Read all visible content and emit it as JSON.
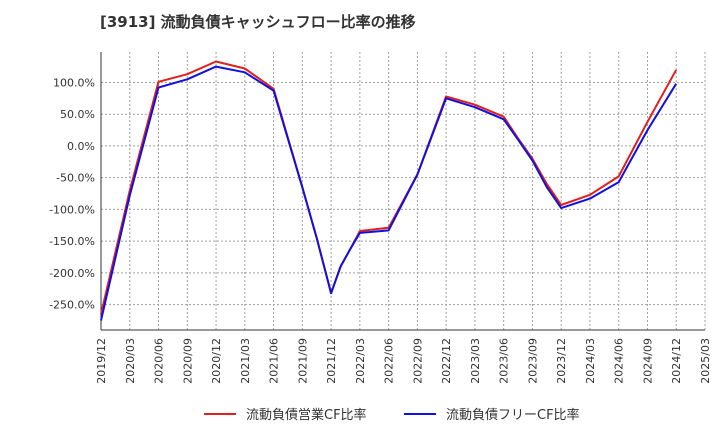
{
  "chart_data": {
    "type": "line",
    "title": "[3913]  流動負債キャッシュフロー比率の推移",
    "xlabel": "",
    "ylabel": "",
    "ylim": [
      -290,
      148
    ],
    "yticks": [
      100,
      50,
      0,
      -50,
      -100,
      -150,
      -200,
      -250
    ],
    "ytick_labels": [
      "100.0%",
      "50.0%",
      "0.0%",
      "-50.0%",
      "-100.0%",
      "-150.0%",
      "-200.0%",
      "-250.0%"
    ],
    "x_tick_labels": [
      "2019/12",
      "2020/03",
      "2020/06",
      "2020/09",
      "2020/12",
      "2021/03",
      "2021/06",
      "2021/09",
      "2021/12",
      "2022/03",
      "2022/06",
      "2022/09",
      "2022/12",
      "2023/03",
      "2023/06",
      "2023/09",
      "2023/12",
      "2024/03",
      "2024/06",
      "2024/09",
      "2024/12",
      "2025/03"
    ],
    "grid": true,
    "legend_position": "bottom",
    "series": [
      {
        "name": "流動負債営業CF比率",
        "color": "#e0201c",
        "points": [
          [
            0,
            -265
          ],
          [
            1,
            -70
          ],
          [
            2,
            101
          ],
          [
            3,
            113
          ],
          [
            4,
            133
          ],
          [
            5,
            122
          ],
          [
            6,
            90
          ],
          [
            7,
            -65
          ],
          [
            7.5,
            -145
          ],
          [
            8,
            -232
          ],
          [
            8.33,
            -190
          ],
          [
            8.67,
            -162
          ],
          [
            9,
            -134
          ],
          [
            10,
            -129
          ],
          [
            11,
            -45
          ],
          [
            12,
            78
          ],
          [
            13,
            65
          ],
          [
            14,
            46
          ],
          [
            14.5,
            12
          ],
          [
            15,
            -20
          ],
          [
            15.5,
            -60
          ],
          [
            16,
            -93
          ],
          [
            17,
            -77
          ],
          [
            18,
            -48
          ],
          [
            19,
            38
          ],
          [
            20,
            120
          ]
        ]
      },
      {
        "name": "流動負債フリーCF比率",
        "color": "#1010e0",
        "points": [
          [
            0,
            -275
          ],
          [
            1,
            -78
          ],
          [
            2,
            92
          ],
          [
            3,
            105
          ],
          [
            4,
            125
          ],
          [
            5,
            116
          ],
          [
            6,
            87
          ],
          [
            7,
            -65
          ],
          [
            7.5,
            -145
          ],
          [
            8,
            -232
          ],
          [
            8.33,
            -190
          ],
          [
            8.67,
            -162
          ],
          [
            9,
            -137
          ],
          [
            10,
            -133
          ],
          [
            11,
            -45
          ],
          [
            12,
            75
          ],
          [
            13,
            61
          ],
          [
            14,
            42
          ],
          [
            14.5,
            10
          ],
          [
            15,
            -23
          ],
          [
            15.5,
            -65
          ],
          [
            16,
            -98
          ],
          [
            17,
            -83
          ],
          [
            18,
            -57
          ],
          [
            19,
            25
          ],
          [
            20,
            98
          ]
        ]
      }
    ]
  }
}
